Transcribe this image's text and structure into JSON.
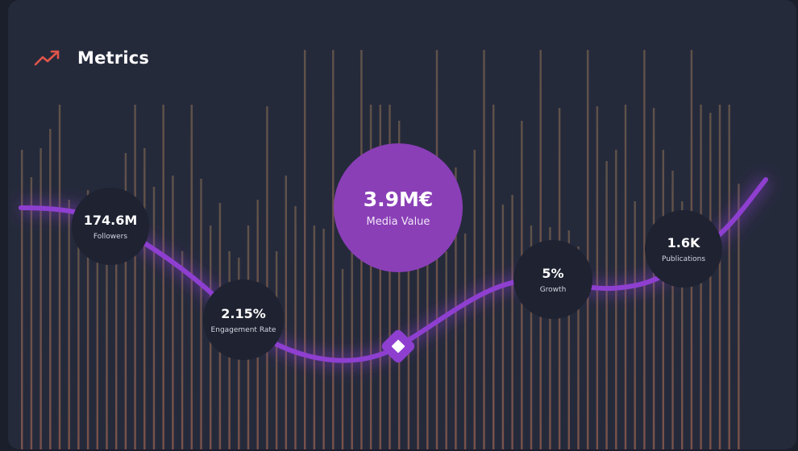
{
  "header": {
    "title": "Metrics",
    "icon": "trending-up-icon",
    "icon_color": "#e0564a"
  },
  "metrics": {
    "followers": {
      "value": "174.6M",
      "label": "Followers"
    },
    "engagement": {
      "value": "2.15%",
      "label": "Engagement Rate"
    },
    "media_value": {
      "value": "3.9M€",
      "label": "Media Value"
    },
    "growth": {
      "value": "5%",
      "label": "Growth"
    },
    "publications": {
      "value": "1.6K",
      "label": "Publications"
    }
  },
  "colors": {
    "background": "#252a3b",
    "accent": "#8a3fb7",
    "line": "#8e3fd0",
    "bar": "#8a6a55",
    "marker_line": "#f2a37c"
  }
}
